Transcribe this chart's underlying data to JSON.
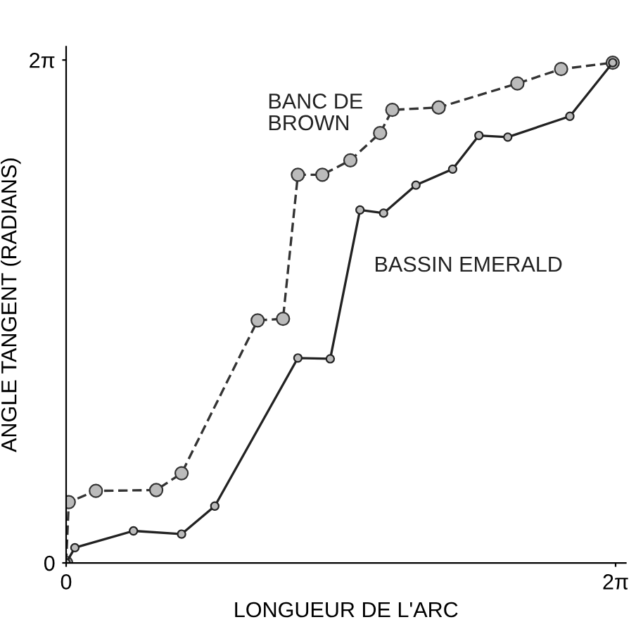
{
  "chart_data": {
    "type": "line",
    "xlabel": "LONGUEUR DE L'ARC",
    "ylabel": "ANGLE TANGENT (RADIANS)",
    "xlim": [
      0,
      6.4
    ],
    "ylim": [
      0,
      6.45
    ],
    "xticks": [
      0,
      {
        "value": 6.283,
        "label": "2π"
      }
    ],
    "yticks": [
      0,
      {
        "value": 6.283,
        "label": "2π"
      }
    ],
    "marker": "circle",
    "grid": false,
    "legend": false,
    "series": [
      {
        "name": "BANC DE\nBROWN",
        "color": "#333333",
        "line_style": "dashed",
        "x": [
          0,
          0.03,
          0.34,
          1.03,
          1.32,
          2.19,
          2.48,
          2.65,
          2.93,
          3.25,
          3.59,
          3.73,
          4.26,
          5.16,
          5.66,
          6.25
        ],
        "values": [
          0,
          0.76,
          0.9,
          0.91,
          1.12,
          3.03,
          3.05,
          4.85,
          4.85,
          5.03,
          5.37,
          5.66,
          5.69,
          5.99,
          6.17,
          6.25
        ]
      },
      {
        "name": "BASSIN EMERALD",
        "color": "#222222",
        "line_style": "solid",
        "x": [
          0,
          0.1,
          0.77,
          1.32,
          1.7,
          2.65,
          3.02,
          3.36,
          3.63,
          4.0,
          4.42,
          4.72,
          5.05,
          5.76,
          6.25
        ],
        "values": [
          0,
          0.19,
          0.4,
          0.36,
          0.71,
          2.56,
          2.55,
          4.41,
          4.37,
          4.72,
          4.92,
          5.34,
          5.32,
          5.58,
          6.25
        ]
      }
    ]
  }
}
